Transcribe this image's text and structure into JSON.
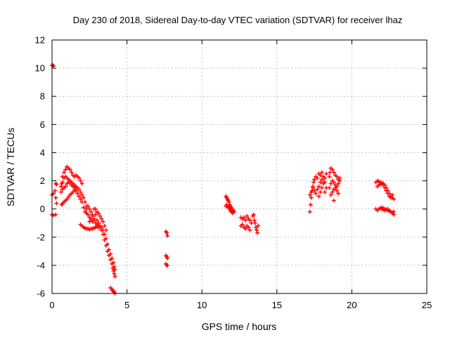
{
  "chart_data": {
    "type": "scatter",
    "title": "Day 230 of 2018, Sidereal Day-to-day VTEC variation (SDTVAR) for receiver lhaz",
    "xlabel": "GPS time / hours",
    "ylabel": "SDTVAR / TECUs",
    "xlim": [
      0,
      25
    ],
    "ylim": [
      -6,
      12
    ],
    "xticks": [
      0,
      5,
      10,
      15,
      20,
      25
    ],
    "yticks": [
      -6,
      -4,
      -2,
      0,
      2,
      4,
      6,
      8,
      10,
      12
    ],
    "grid": true,
    "marker": "+",
    "color": "#ff0000",
    "segments": [
      {
        "x": [
          0.0,
          0.05,
          0.1
        ],
        "y": [
          10.2,
          10.2,
          10.15
        ]
      },
      {
        "x": [
          0.0,
          0.1,
          0.25
        ],
        "y": [
          -0.4,
          -0.45,
          -0.4
        ]
      },
      {
        "x": [
          0.0,
          0.1,
          0.2,
          0.25,
          0.3
        ],
        "y": [
          1.0,
          1.1,
          1.3,
          0.8,
          0.4
        ]
      },
      {
        "x": [
          0.25,
          0.3
        ],
        "y": [
          1.8,
          1.75
        ]
      },
      {
        "x": [
          0.65,
          0.7,
          0.8,
          0.9,
          1.0,
          1.1,
          1.2,
          1.3,
          1.4,
          1.5,
          1.6
        ],
        "y": [
          0.3,
          0.4,
          0.5,
          0.6,
          0.7,
          0.85,
          1.0,
          1.1,
          1.2,
          1.35,
          1.5
        ]
      },
      {
        "x": [
          0.6,
          0.65,
          0.7,
          0.8,
          0.9,
          1.0,
          1.1,
          1.2,
          1.3,
          1.4,
          1.5
        ],
        "y": [
          1.2,
          1.8,
          2.3,
          2.6,
          2.8,
          3.0,
          2.9,
          2.8,
          2.6,
          2.4,
          2.3
        ]
      },
      {
        "x": [
          0.6,
          0.7,
          0.8,
          0.9,
          1.0,
          1.1,
          1.2,
          1.3,
          1.4,
          1.5,
          1.6,
          1.7,
          1.8,
          1.9,
          2.0,
          2.1,
          2.2,
          2.3
        ],
        "y": [
          1.6,
          1.9,
          2.2,
          2.3,
          2.2,
          2.1,
          2.0,
          1.9,
          1.8,
          1.7,
          1.6,
          1.5,
          1.4,
          1.2,
          1.0,
          0.8,
          0.5,
          0.2
        ]
      },
      {
        "x": [
          0.7,
          0.8,
          0.9,
          1.0,
          1.1,
          1.2,
          1.3,
          1.4,
          1.5,
          1.6,
          1.7,
          1.8,
          1.9,
          2.0
        ],
        "y": [
          1.4,
          1.5,
          1.6,
          1.8,
          1.9,
          1.85,
          1.7,
          1.6,
          1.5,
          1.3,
          1.1,
          0.9,
          0.7,
          0.5
        ]
      },
      {
        "x": [
          1.6,
          1.7,
          1.8,
          1.9,
          2.0
        ],
        "y": [
          2.4,
          2.3,
          2.2,
          2.0,
          1.8
        ]
      },
      {
        "x": [
          1.9,
          2.0,
          2.1,
          2.2,
          2.3,
          2.4,
          2.5,
          2.6,
          2.7,
          2.8,
          2.9,
          3.0,
          3.1,
          3.2
        ],
        "y": [
          -1.1,
          -1.2,
          -1.3,
          -1.35,
          -1.4,
          -1.4,
          -1.45,
          -1.4,
          -1.4,
          -1.35,
          -1.3,
          -1.25,
          -1.3,
          -1.2
        ]
      },
      {
        "x": [
          2.1,
          2.2,
          2.3,
          2.4,
          2.5,
          2.6,
          2.7,
          2.8,
          2.9,
          3.0,
          3.1,
          3.2
        ],
        "y": [
          0.1,
          -0.2,
          -0.3,
          -0.4,
          -0.6,
          -0.8,
          -0.9,
          -0.8,
          -1.0,
          -1.1,
          -1.2,
          -1.3
        ]
      },
      {
        "x": [
          2.3,
          2.4,
          2.5,
          2.6,
          2.7,
          2.8,
          2.9
        ],
        "y": [
          0.0,
          0.2,
          0.0,
          -0.2,
          -0.5,
          -0.7,
          -0.4
        ]
      },
      {
        "x": [
          2.5,
          2.6,
          2.7,
          2.8,
          2.9,
          3.0,
          3.1,
          3.2,
          3.3,
          3.4,
          3.5,
          3.6
        ],
        "y": [
          -0.9,
          -0.7,
          -0.4,
          0.0,
          0.0,
          -0.2,
          -0.3,
          -0.5,
          -0.7,
          -0.9,
          -1.2,
          -1.5
        ]
      },
      {
        "x": [
          3.0,
          3.1,
          3.2,
          3.3,
          3.4,
          3.5,
          3.6,
          3.7,
          3.8,
          3.9,
          4.0,
          4.05,
          4.1,
          4.15,
          4.2
        ],
        "y": [
          -0.8,
          -1.0,
          -1.2,
          -1.5,
          -1.8,
          -2.2,
          -2.6,
          -3.0,
          -3.3,
          -3.6,
          -3.9,
          -4.2,
          -4.4,
          -4.6,
          -4.8
        ]
      },
      {
        "x": [
          3.3,
          3.4,
          3.5,
          3.6,
          3.7,
          3.8,
          3.9,
          4.0,
          4.1,
          4.15,
          4.2
        ],
        "y": [
          -1.3,
          -1.5,
          -1.8,
          -2.1,
          -2.5,
          -2.9,
          -3.2,
          -3.5,
          -3.8,
          -4.1,
          -4.3
        ]
      },
      {
        "x": [
          3.9,
          4.0,
          4.05,
          4.1,
          4.15,
          4.2
        ],
        "y": [
          -5.6,
          -5.7,
          -5.8,
          -5.85,
          -5.9,
          -6.0
        ]
      },
      {
        "x": [
          7.6,
          7.65,
          7.7,
          7.6,
          7.65,
          7.7,
          7.6,
          7.65,
          7.7
        ],
        "y": [
          -1.6,
          -1.7,
          -1.9,
          -3.3,
          -3.4,
          -3.5,
          -3.9,
          -4.0,
          -4.0
        ]
      },
      {
        "x": [
          11.6,
          11.65,
          11.7,
          11.75,
          11.8,
          11.85,
          11.9,
          11.95,
          12.0,
          12.05,
          12.1,
          12.15
        ],
        "y": [
          0.9,
          0.8,
          0.7,
          0.6,
          0.5,
          0.3,
          0.2,
          0.1,
          0.0,
          -0.1,
          -0.1,
          -0.2
        ]
      },
      {
        "x": [
          11.6,
          11.65,
          11.7,
          11.75,
          11.8,
          11.85,
          11.9,
          11.95,
          12.0,
          12.05,
          12.1
        ],
        "y": [
          0.2,
          0.3,
          0.2,
          0.1,
          0.1,
          0.0,
          -0.1,
          -0.2,
          -0.2,
          -0.3,
          -0.2
        ]
      },
      {
        "x": [
          12.6,
          12.7,
          12.8,
          12.9,
          13.0,
          13.1,
          13.2,
          13.3
        ],
        "y": [
          -0.6,
          -0.7,
          -0.6,
          -0.8,
          -0.5,
          -0.7,
          -0.8,
          -1.0
        ]
      },
      {
        "x": [
          12.6,
          12.7,
          12.8,
          12.9,
          13.0,
          13.1,
          13.2
        ],
        "y": [
          -1.2,
          -1.1,
          -1.3,
          -1.4,
          -1.2,
          -1.3,
          -1.5
        ]
      },
      {
        "x": [
          13.4,
          13.45,
          13.5,
          13.55,
          13.6,
          13.65,
          13.7,
          13.75
        ],
        "y": [
          -0.5,
          -0.4,
          -0.8,
          -1.0,
          -1.3,
          -1.5,
          -1.7,
          -1.2
        ]
      },
      {
        "x": [
          17.2,
          17.25,
          17.3,
          17.35,
          17.4,
          17.45,
          17.5,
          17.6,
          17.7,
          17.8,
          17.9,
          18.0,
          18.1,
          18.2,
          18.3
        ],
        "y": [
          -0.2,
          0.3,
          0.8,
          1.3,
          1.6,
          1.9,
          2.1,
          2.3,
          2.2,
          2.5,
          2.4,
          2.6,
          2.3,
          1.9,
          1.5
        ]
      },
      {
        "x": [
          17.2,
          17.3,
          17.4,
          17.5,
          17.6,
          17.7,
          17.8,
          17.9,
          18.0,
          18.1,
          18.2
        ],
        "y": [
          1.0,
          1.2,
          1.5,
          1.3,
          1.1,
          1.4,
          1.6,
          1.9,
          2.1,
          1.8,
          1.2
        ]
      },
      {
        "x": [
          17.8,
          17.9,
          18.0,
          18.1,
          18.2,
          18.3
        ],
        "y": [
          0.9,
          1.2,
          1.5,
          1.9,
          2.2,
          2.5
        ]
      },
      {
        "x": [
          18.5,
          18.55,
          18.6,
          18.7,
          18.8,
          18.9,
          19.0,
          19.1,
          19.2
        ],
        "y": [
          2.3,
          2.6,
          2.9,
          2.8,
          2.6,
          2.4,
          2.3,
          2.1,
          2.0
        ]
      },
      {
        "x": [
          18.5,
          18.6,
          18.7,
          18.8,
          18.9,
          19.0,
          19.1,
          19.2
        ],
        "y": [
          1.5,
          1.8,
          2.0,
          1.9,
          1.7,
          1.6,
          1.8,
          2.2
        ]
      },
      {
        "x": [
          18.6,
          18.7,
          18.8,
          18.9,
          19.0,
          19.1
        ],
        "y": [
          1.0,
          1.2,
          1.4,
          1.5,
          1.3,
          1.1
        ]
      },
      {
        "x": [
          18.8
        ],
        "y": [
          0.6
        ]
      },
      {
        "x": [
          21.6,
          21.7,
          21.8,
          21.9,
          22.0,
          22.1,
          22.2,
          22.3,
          22.4,
          22.5,
          22.6,
          22.7,
          22.8
        ],
        "y": [
          1.9,
          2.0,
          1.95,
          1.9,
          1.85,
          1.8,
          1.7,
          1.5,
          1.3,
          1.1,
          0.9,
          0.8,
          0.7
        ]
      },
      {
        "x": [
          21.7,
          21.8,
          21.9,
          22.0,
          22.1,
          22.2,
          22.3,
          22.4,
          22.5,
          22.6,
          22.7
        ],
        "y": [
          1.6,
          1.7,
          1.75,
          1.8,
          1.7,
          1.5,
          1.3,
          1.1,
          0.9,
          0.8,
          1.0
        ]
      },
      {
        "x": [
          21.6,
          21.7,
          21.8,
          21.9,
          22.0,
          22.1,
          22.2,
          22.3,
          22.4,
          22.5,
          22.6,
          22.7,
          22.8
        ],
        "y": [
          0.0,
          -0.1,
          0.0,
          0.05,
          0.0,
          -0.05,
          -0.1,
          -0.05,
          0.0,
          -0.1,
          -0.2,
          -0.3,
          -0.4
        ]
      },
      {
        "x": [
          22.0,
          22.1,
          22.2,
          22.3,
          22.4,
          22.5,
          22.6,
          22.7,
          22.8
        ],
        "y": [
          0.1,
          0.05,
          0.0,
          -0.05,
          -0.1,
          -0.15,
          -0.2,
          -0.25,
          -0.2
        ]
      }
    ]
  }
}
